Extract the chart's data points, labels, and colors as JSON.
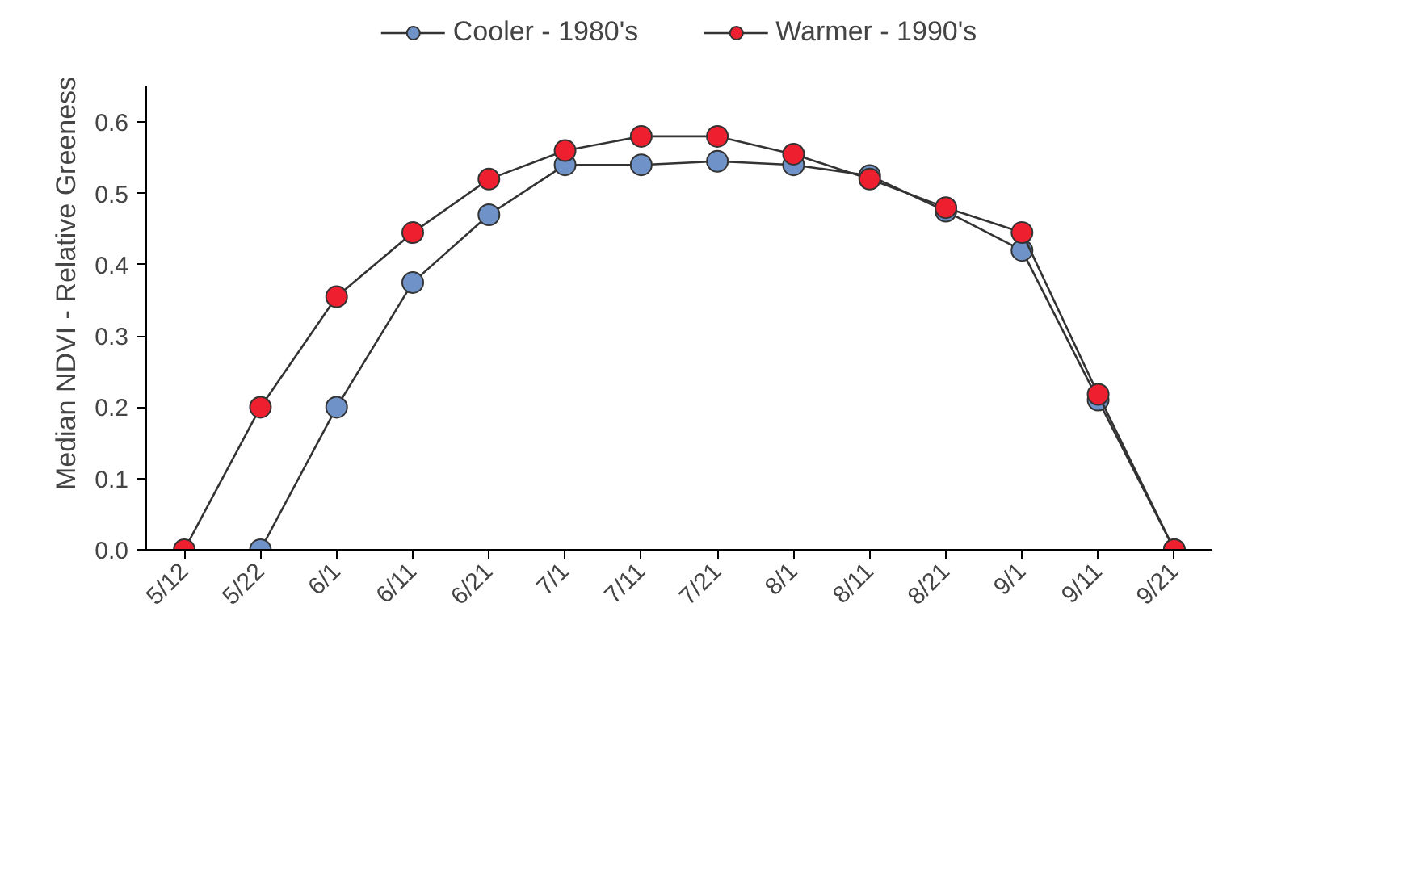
{
  "chart_data": {
    "type": "line",
    "ylabel": "Median NDVI - Relative Greeness",
    "categories": [
      "5/12",
      "5/22",
      "6/1",
      "6/11",
      "6/21",
      "7/1",
      "7/11",
      "7/21",
      "8/1",
      "8/11",
      "8/21",
      "9/1",
      "9/11",
      "9/21"
    ],
    "series": [
      {
        "name": "Cooler - 1980's",
        "color": "#6f93c8",
        "values": [
          null,
          0.0,
          0.2,
          0.375,
          0.47,
          0.54,
          0.54,
          0.545,
          0.54,
          0.525,
          0.475,
          0.42,
          0.21,
          0.0
        ]
      },
      {
        "name": "Warmer - 1990's",
        "color": "#ee2030",
        "values": [
          0.0,
          0.2,
          0.355,
          0.445,
          0.52,
          0.56,
          0.58,
          0.58,
          0.555,
          0.52,
          0.48,
          0.445,
          0.218,
          0.0
        ]
      }
    ],
    "ylim": [
      0,
      0.65
    ],
    "yticks": [
      {
        "value": 0,
        "label": "0.0"
      },
      {
        "value": 0.1,
        "label": "0.1"
      },
      {
        "value": 0.2,
        "label": "0.2"
      },
      {
        "value": 0.3,
        "label": "0.3"
      },
      {
        "value": 0.4,
        "label": "0.4"
      },
      {
        "value": 0.5,
        "label": "0.5"
      },
      {
        "value": 0.6,
        "label": "0.6"
      }
    ],
    "grid": false,
    "legend": "top",
    "marker": "circle",
    "line_style": "solid"
  }
}
